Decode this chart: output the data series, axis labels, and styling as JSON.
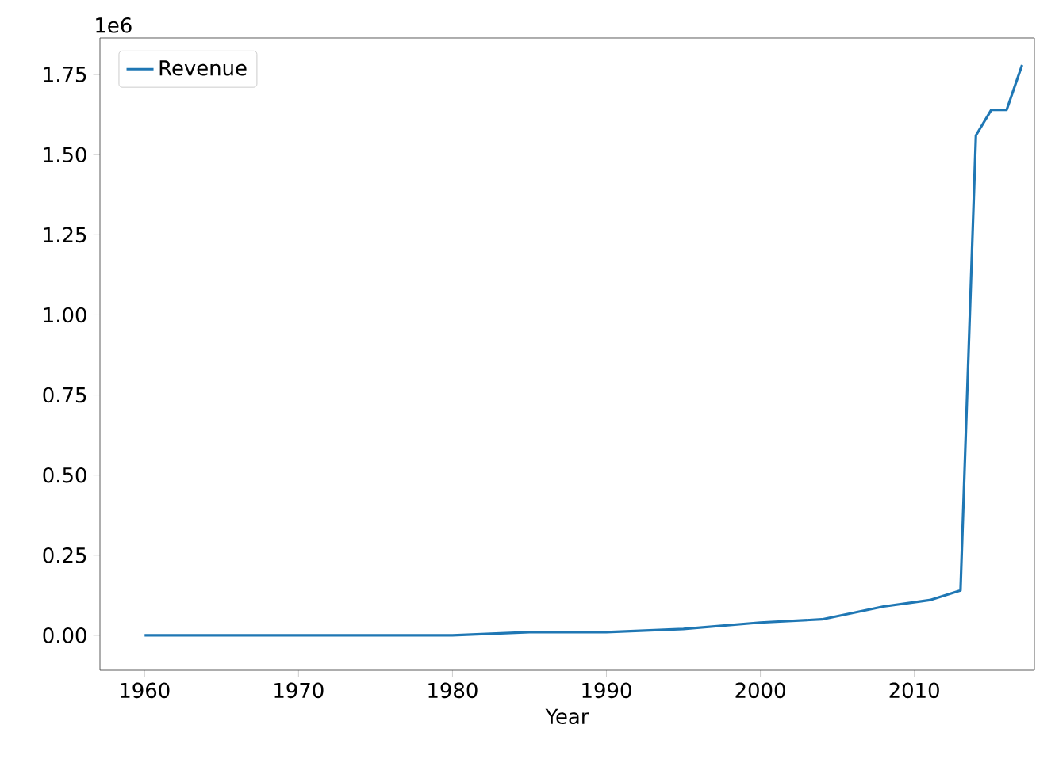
{
  "chart_data": {
    "type": "line",
    "xlabel": "Year",
    "annotations": [
      "1e6"
    ],
    "x": [
      1960,
      1965,
      1970,
      1975,
      1980,
      1985,
      1990,
      1995,
      2000,
      2004,
      2008,
      2011,
      2013,
      2014,
      2015,
      2016,
      2017
    ],
    "series": [
      {
        "name": "Revenue",
        "color": "#1f77b4",
        "values": [
          0,
          0,
          0,
          0,
          0,
          0.01,
          0.01,
          0.02,
          0.04,
          0.05,
          0.09,
          0.11,
          0.14,
          1.56,
          1.64,
          1.64,
          1.78
        ]
      }
    ],
    "xlim": [
      1957.1,
      2017.8
    ],
    "ylim": [
      -0.109,
      1.864
    ],
    "xticks": [
      1960,
      1970,
      1980,
      1990,
      2000,
      2010
    ],
    "yticks": [
      {
        "value": 0,
        "label": "0.00"
      },
      0.25,
      {
        "value": 0.5,
        "label": "0.50"
      },
      0.75,
      {
        "value": 1,
        "label": "1.00"
      },
      1.25,
      {
        "value": 1.5,
        "label": "1.50"
      },
      1.75
    ],
    "legend": "top left",
    "grid": false,
    "marker": "none",
    "line_style": "solid"
  }
}
